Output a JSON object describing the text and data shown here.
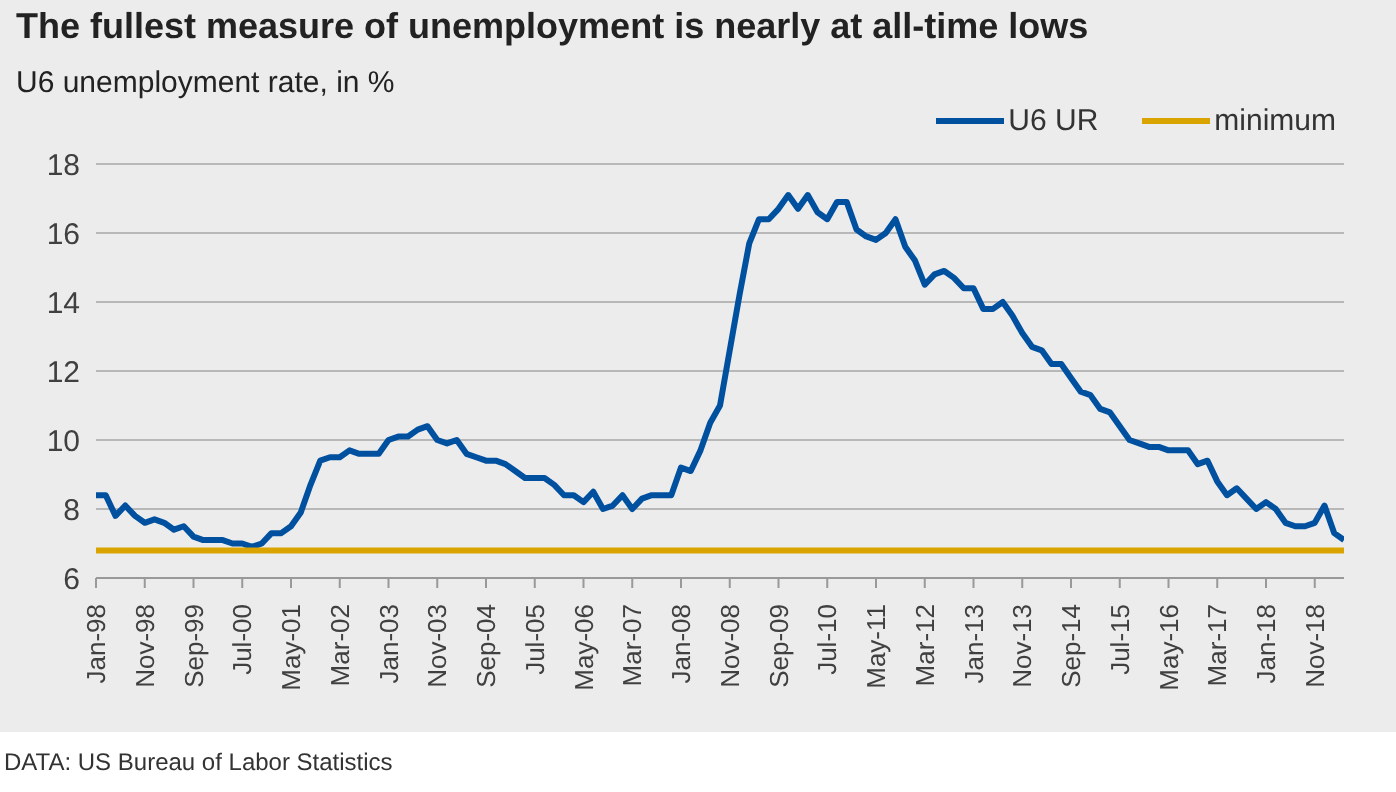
{
  "chart_data": {
    "type": "line",
    "title": "The fullest measure of unemployment is nearly at all-time lows",
    "subtitle": "U6 unemployment rate, in %",
    "annotations": [
      "DATA: US Bureau of Labor Statistics"
    ],
    "categories": [
      "Jan-98",
      null,
      null,
      null,
      null,
      "Nov-98",
      null,
      null,
      null,
      null,
      "Sep-99",
      null,
      null,
      null,
      null,
      "Jul-00",
      null,
      null,
      null,
      null,
      "May-01",
      null,
      null,
      null,
      null,
      "Mar-02",
      null,
      null,
      null,
      null,
      "Jan-03",
      null,
      null,
      null,
      null,
      "Nov-03",
      null,
      null,
      null,
      null,
      "Sep-04",
      null,
      null,
      null,
      null,
      "Jul-05",
      null,
      null,
      null,
      null,
      "May-06",
      null,
      null,
      null,
      null,
      "Mar-07",
      null,
      null,
      null,
      null,
      "Jan-08",
      null,
      null,
      null,
      null,
      "Nov-08",
      null,
      null,
      null,
      null,
      "Sep-09",
      null,
      null,
      null,
      null,
      "Jul-10",
      null,
      null,
      null,
      null,
      "May-11",
      null,
      null,
      null,
      null,
      "Mar-12",
      null,
      null,
      null,
      null,
      "Jan-13",
      null,
      null,
      null,
      null,
      "Nov-13",
      null,
      null,
      null,
      null,
      "Sep-14",
      null,
      null,
      null,
      null,
      "Jul-15",
      null,
      null,
      null,
      null,
      "May-16",
      null,
      null,
      null,
      null,
      "Mar-17",
      null,
      null,
      null,
      null,
      "Jan-18",
      null,
      null,
      null,
      null,
      "Nov-18",
      null,
      null,
      null
    ],
    "series": [
      {
        "name": "U6 UR",
        "color": "#0050a0",
        "values": [
          8.4,
          8.4,
          7.8,
          8.1,
          7.8,
          7.6,
          7.7,
          7.6,
          7.4,
          7.5,
          7.2,
          7.1,
          7.1,
          7.1,
          7.0,
          7.0,
          6.9,
          7.0,
          7.3,
          7.3,
          7.5,
          7.9,
          8.7,
          9.4,
          9.5,
          9.5,
          9.7,
          9.6,
          9.6,
          9.6,
          10.0,
          10.1,
          10.1,
          10.3,
          10.4,
          10.0,
          9.9,
          10.0,
          9.6,
          9.5,
          9.4,
          9.4,
          9.3,
          9.1,
          8.9,
          8.9,
          8.9,
          8.7,
          8.4,
          8.4,
          8.2,
          8.5,
          8.0,
          8.1,
          8.4,
          8.0,
          8.3,
          8.4,
          8.4,
          8.4,
          9.2,
          9.1,
          9.7,
          10.5,
          11.0,
          12.6,
          14.2,
          15.7,
          16.4,
          16.4,
          16.7,
          17.1,
          16.7,
          17.1,
          16.6,
          16.4,
          16.9,
          16.9,
          16.1,
          15.9,
          15.8,
          16.0,
          16.4,
          15.6,
          15.2,
          14.5,
          14.8,
          14.9,
          14.7,
          14.4,
          14.4,
          13.8,
          13.8,
          14.0,
          13.6,
          13.1,
          12.7,
          12.6,
          12.2,
          12.2,
          11.8,
          11.4,
          11.3,
          10.9,
          10.8,
          10.4,
          10.0,
          9.9,
          9.8,
          9.8,
          9.7,
          9.7,
          9.7,
          9.3,
          9.4,
          8.8,
          8.4,
          8.6,
          8.3,
          8.0,
          8.2,
          8.0,
          7.6,
          7.5,
          7.5,
          7.6,
          8.1,
          7.3,
          7.1
        ]
      },
      {
        "name": "minimum",
        "color": "#d9a400",
        "values": [
          6.8,
          6.8,
          6.8,
          6.8,
          6.8,
          6.8,
          6.8,
          6.8,
          6.8,
          6.8,
          6.8,
          6.8,
          6.8,
          6.8,
          6.8,
          6.8,
          6.8,
          6.8,
          6.8,
          6.8,
          6.8,
          6.8,
          6.8,
          6.8,
          6.8,
          6.8,
          6.8,
          6.8,
          6.8,
          6.8,
          6.8,
          6.8,
          6.8,
          6.8,
          6.8,
          6.8,
          6.8,
          6.8,
          6.8,
          6.8,
          6.8,
          6.8,
          6.8,
          6.8,
          6.8,
          6.8,
          6.8,
          6.8,
          6.8,
          6.8,
          6.8,
          6.8,
          6.8,
          6.8,
          6.8,
          6.8,
          6.8,
          6.8,
          6.8,
          6.8,
          6.8,
          6.8,
          6.8,
          6.8,
          6.8,
          6.8,
          6.8,
          6.8,
          6.8,
          6.8,
          6.8,
          6.8,
          6.8,
          6.8,
          6.8,
          6.8,
          6.8,
          6.8,
          6.8,
          6.8,
          6.8,
          6.8,
          6.8,
          6.8,
          6.8,
          6.8,
          6.8,
          6.8,
          6.8,
          6.8,
          6.8,
          6.8,
          6.8,
          6.8,
          6.8,
          6.8,
          6.8,
          6.8,
          6.8,
          6.8,
          6.8,
          6.8,
          6.8,
          6.8,
          6.8,
          6.8,
          6.8,
          6.8,
          6.8,
          6.8,
          6.8,
          6.8,
          6.8,
          6.8,
          6.8,
          6.8,
          6.8,
          6.8,
          6.8,
          6.8,
          6.8,
          6.8,
          6.8,
          6.8,
          6.8,
          6.8,
          6.8,
          6.8,
          6.8
        ]
      }
    ],
    "ylim": [
      6,
      18
    ],
    "yticks": [
      6,
      8,
      10,
      12,
      14,
      16,
      18
    ],
    "grid": "y",
    "legend": "top right",
    "marker": "none",
    "line_style": "solid"
  }
}
